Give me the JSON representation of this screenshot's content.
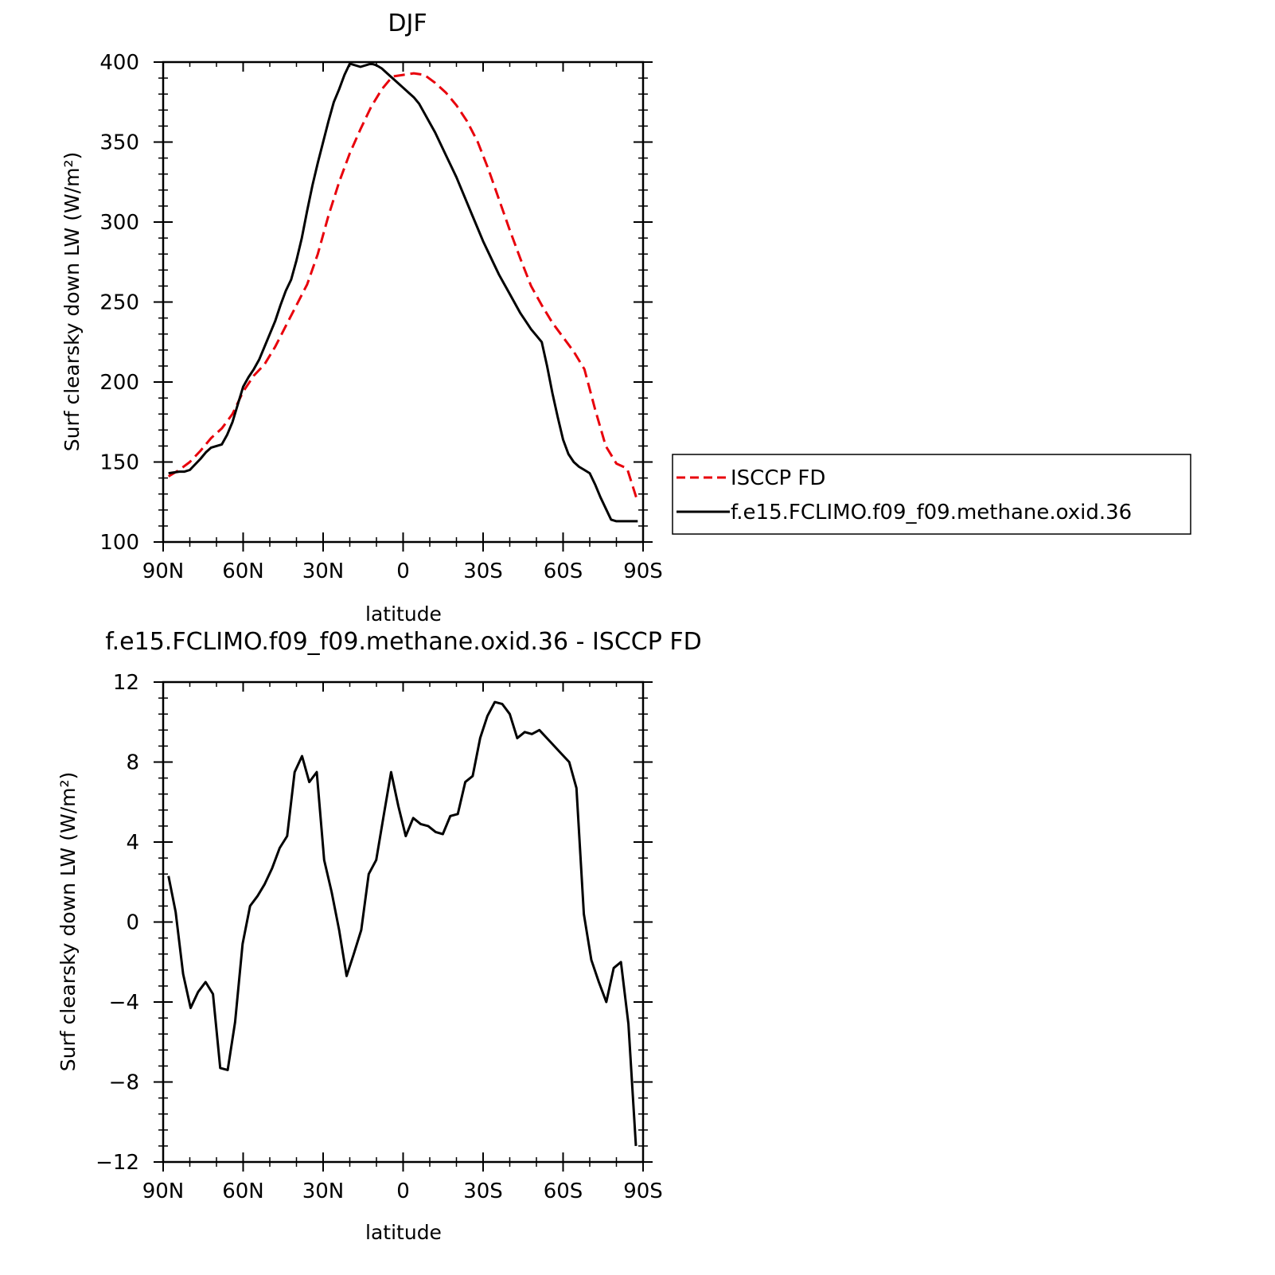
{
  "chart_data": [
    {
      "type": "line",
      "title": "DJF",
      "xlabel": "latitude",
      "ylabel": "Surf clearsky down LW (W/m²)",
      "ylim": [
        100,
        400
      ],
      "xlim": [
        90,
        -90
      ],
      "x_ticks": [
        {
          "value": 90,
          "label": "90N"
        },
        {
          "value": 60,
          "label": "60N"
        },
        {
          "value": 30,
          "label": "30N"
        },
        {
          "value": 0,
          "label": "0"
        },
        {
          "value": -30,
          "label": "30S"
        },
        {
          "value": -60,
          "label": "60S"
        },
        {
          "value": -90,
          "label": "90S"
        }
      ],
      "y_ticks": [
        100,
        150,
        200,
        250,
        300,
        350,
        400
      ],
      "legend_position": "right",
      "series": [
        {
          "name": "ISCCP FD",
          "color": "#e8000b",
          "dash": "dashed",
          "x": [
            88,
            84,
            80,
            76,
            72,
            68,
            64,
            60,
            56,
            52,
            48,
            44,
            40,
            36,
            32,
            28,
            24,
            20,
            16,
            12,
            8,
            4,
            0,
            -4,
            -8,
            -12,
            -16,
            -20,
            -24,
            -28,
            -32,
            -36,
            -40,
            -44,
            -48,
            -52,
            -56,
            -60,
            -64,
            -68,
            -72,
            -76,
            -80,
            -84,
            -88
          ],
          "y": [
            141,
            145,
            150,
            157,
            165,
            171,
            180,
            194,
            204,
            211,
            222,
            235,
            248,
            261,
            280,
            304,
            325,
            343,
            358,
            372,
            383,
            391,
            392,
            393,
            392,
            387,
            381,
            373,
            363,
            350,
            333,
            314,
            295,
            277,
            260,
            248,
            237,
            228,
            219,
            208,
            183,
            160,
            149,
            146,
            125
          ]
        },
        {
          "name": "f.e15.FCLIMO.f09_f09.methane.oxid.36",
          "color": "#000000",
          "dash": "solid",
          "x": [
            88,
            84,
            82,
            80,
            76,
            74,
            72,
            70,
            68,
            66,
            64,
            62,
            60,
            58,
            56,
            54,
            52,
            50,
            48,
            46,
            44,
            42,
            40,
            38,
            36,
            34,
            32,
            30,
            28,
            26,
            24,
            22,
            20,
            18,
            16,
            14,
            12,
            10,
            8,
            6,
            4,
            2,
            0,
            -2,
            -4,
            -6,
            -8,
            -10,
            -12,
            -14,
            -16,
            -18,
            -20,
            -22,
            -24,
            -26,
            -28,
            -30,
            -32,
            -34,
            -36,
            -38,
            -40,
            -42,
            -44,
            -46,
            -48,
            -50,
            -52,
            -54,
            -56,
            -58,
            -60,
            -62,
            -64,
            -66,
            -68,
            -70,
            -72,
            -74,
            -76,
            -78,
            -80,
            -82,
            -84,
            -86,
            -88
          ],
          "y": [
            143,
            144,
            144,
            145,
            152,
            156,
            159,
            160,
            161,
            167,
            175,
            186,
            197,
            203,
            208,
            214,
            222,
            230,
            238,
            248,
            257,
            264,
            276,
            290,
            307,
            323,
            337,
            350,
            363,
            375,
            383,
            392,
            399,
            398,
            397,
            398,
            399,
            398,
            396,
            393,
            390,
            387,
            384,
            381,
            378,
            374,
            368,
            362,
            356,
            349,
            342,
            335,
            328,
            320,
            312,
            304,
            296,
            288,
            281,
            274,
            267,
            261,
            255,
            249,
            243,
            238,
            233,
            229,
            225,
            210,
            193,
            178,
            164,
            155,
            150,
            147,
            145,
            143,
            136,
            128,
            121,
            114,
            113,
            113,
            113,
            113,
            113
          ]
        }
      ]
    },
    {
      "type": "line",
      "title": "f.e15.FCLIMO.f09_f09.methane.oxid.36 - ISCCP FD",
      "xlabel": "latitude",
      "ylabel": "Surf clearsky down LW (W/m²)",
      "ylim": [
        -12,
        12
      ],
      "xlim": [
        90,
        -90
      ],
      "x_ticks": [
        {
          "value": 90,
          "label": "90N"
        },
        {
          "value": 60,
          "label": "60N"
        },
        {
          "value": 30,
          "label": "30N"
        },
        {
          "value": 0,
          "label": "0"
        },
        {
          "value": -30,
          "label": "30S"
        },
        {
          "value": -60,
          "label": "60S"
        },
        {
          "value": -90,
          "label": "90S"
        }
      ],
      "y_ticks": [
        {
          "value": -12,
          "label": "−12"
        },
        {
          "value": -8,
          "label": "−8"
        },
        {
          "value": -4,
          "label": "−4"
        },
        {
          "value": 0,
          "label": "0"
        },
        {
          "value": 4,
          "label": "4"
        },
        {
          "value": 8,
          "label": "8"
        },
        {
          "value": 12,
          "label": "12"
        }
      ],
      "series": [
        {
          "name": "",
          "color": "#000000",
          "dash": "solid",
          "x": [
            88,
            85.3,
            82.5,
            79.7,
            76.9,
            74.1,
            71.3,
            68.6,
            65.8,
            63,
            60.2,
            57.4,
            54.6,
            51.9,
            49.1,
            46.3,
            43.5,
            40.7,
            37.9,
            35.2,
            32.4,
            29.6,
            26.8,
            24,
            21.2,
            18.5,
            15.7,
            12.9,
            10.1,
            7.3,
            4.5,
            1.8,
            -1,
            -3.8,
            -6.6,
            -9.4,
            -12.2,
            -14.9,
            -17.7,
            -20.5,
            -23.3,
            -26.1,
            -28.9,
            -31.6,
            -34.4,
            -37.2,
            -40,
            -42.8,
            -45.6,
            -48.3,
            -51.1,
            -53.9,
            -56.7,
            -59.5,
            -62.3,
            -65,
            -67.8,
            -70.6,
            -73.4,
            -76.2,
            -79,
            -81.7,
            -84.5,
            -87.3
          ],
          "y": [
            2.3,
            0.5,
            -2.6,
            -4.3,
            -3.5,
            -3.0,
            -3.6,
            -7.3,
            -7.4,
            -5.0,
            -1.1,
            0.8,
            1.3,
            1.9,
            2.7,
            3.7,
            4.3,
            7.5,
            8.3,
            7.0,
            7.5,
            3.1,
            1.5,
            -0.4,
            -2.7,
            -1.6,
            -0.4,
            2.4,
            3.1,
            5.3,
            7.5,
            5.8,
            4.3,
            5.2,
            4.9,
            4.8,
            4.5,
            4.4,
            5.3,
            5.4,
            7.0,
            7.3,
            9.2,
            10.3,
            11.0,
            10.9,
            10.4,
            9.2,
            9.5,
            9.4,
            9.6,
            9.2,
            8.8,
            8.4,
            8.0,
            6.7,
            0.4,
            -1.9,
            -3.0,
            -4.0,
            -2.3,
            -2.0,
            -5.1,
            -11.2
          ]
        }
      ]
    }
  ]
}
